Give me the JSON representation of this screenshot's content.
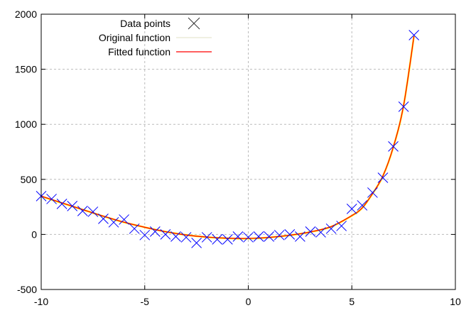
{
  "chart_data": {
    "type": "line",
    "title": "",
    "xlabel": "",
    "ylabel": "",
    "xlim": [
      -10,
      10
    ],
    "ylim": [
      -500,
      2000
    ],
    "xticks": [
      -10,
      -5,
      0,
      5,
      10
    ],
    "yticks": [
      -500,
      0,
      500,
      1000,
      1500,
      2000
    ],
    "grid": true,
    "legend_position": "top-left",
    "series": [
      {
        "name": "Data points",
        "style": "points",
        "marker": "x",
        "color": "#0000ff",
        "x": [
          -10,
          -9.5,
          -9,
          -8.5,
          -8,
          -7.5,
          -7,
          -6.5,
          -6,
          -5.5,
          -5,
          -4.5,
          -4,
          -3.5,
          -3,
          -2.5,
          -2,
          -1.5,
          -1,
          -0.5,
          0,
          0.5,
          1,
          1.5,
          2,
          2.5,
          3,
          3.5,
          4,
          4.5,
          5,
          5.5,
          6,
          6.5,
          7,
          7.5,
          8
        ],
        "y": [
          348,
          322,
          277,
          258,
          213,
          206,
          142,
          110,
          135,
          52,
          -6,
          26,
          0,
          -19,
          -26,
          -77,
          -26,
          -45,
          -45,
          -19,
          -26,
          -19,
          -19,
          -6,
          0,
          -19,
          26,
          19,
          52,
          77,
          232,
          264,
          380,
          515,
          799,
          1160,
          1810
        ]
      },
      {
        "name": "Original function",
        "style": "line",
        "color": "#ffff00",
        "x": [
          -10,
          -9,
          -8,
          -7,
          -6,
          -5,
          -4,
          -3,
          -2,
          -1,
          0,
          1,
          2,
          3,
          4,
          5,
          5.5,
          6,
          6.5,
          7,
          7.5,
          8
        ],
        "y": [
          345,
          285,
          225,
          165,
          110,
          65,
          25,
          -5,
          -25,
          -35,
          -38,
          -28,
          -8,
          22,
          70,
          170,
          240,
          370,
          530,
          790,
          1170,
          1800
        ]
      },
      {
        "name": "Fitted function",
        "style": "line",
        "color": "#ff0000",
        "x": [
          -10,
          -9,
          -8,
          -7,
          -6,
          -5,
          -4,
          -3,
          -2,
          -1,
          0,
          1,
          2,
          3,
          4,
          5,
          5.5,
          6,
          6.5,
          7,
          7.5,
          8
        ],
        "y": [
          348,
          287,
          226,
          166,
          111,
          65,
          25,
          -5,
          -24,
          -34,
          -36,
          -27,
          -7,
          23,
          71,
          171,
          241,
          371,
          531,
          792,
          1172,
          1800
        ]
      }
    ]
  }
}
